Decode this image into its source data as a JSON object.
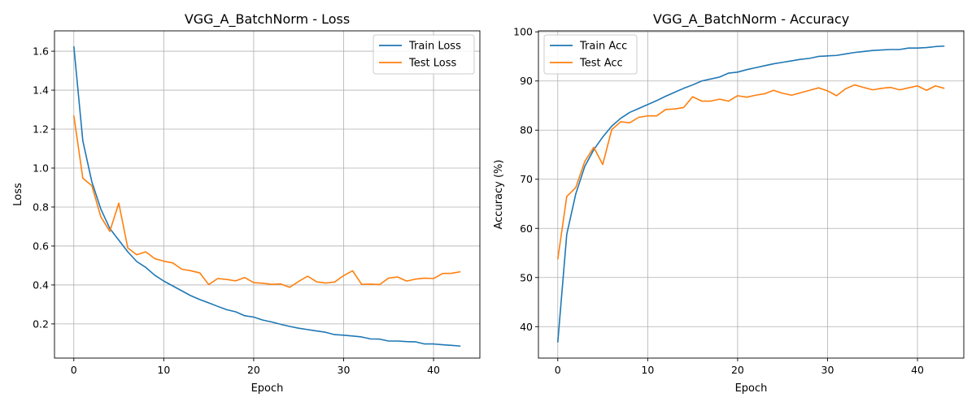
{
  "chart_data": [
    {
      "type": "line",
      "title": "VGG_A_BatchNorm - Loss",
      "xlabel": "Epoch",
      "ylabel": "Loss",
      "xlim": [
        -2.15,
        45.15
      ],
      "ylim": [
        0.0245,
        1.7045
      ],
      "xticks": [
        0,
        10,
        20,
        30,
        40
      ],
      "yticks": [
        0.2,
        0.4,
        0.6,
        0.8,
        1.0,
        1.2,
        1.4,
        1.6
      ],
      "ytick_labels": [
        "0.2",
        "0.4",
        "0.6",
        "0.8",
        "1.0",
        "1.2",
        "1.4",
        "1.6"
      ],
      "grid": true,
      "legend_position": "top-right",
      "x": [
        0,
        1,
        2,
        3,
        4,
        5,
        6,
        7,
        8,
        9,
        10,
        11,
        12,
        13,
        14,
        15,
        16,
        17,
        18,
        19,
        20,
        21,
        22,
        23,
        24,
        25,
        26,
        27,
        28,
        29,
        30,
        31,
        32,
        33,
        34,
        35,
        36,
        37,
        38,
        39,
        40,
        41,
        42,
        43
      ],
      "series": [
        {
          "name": "Train Loss",
          "color": "#1f77b4",
          "values": [
            1.625,
            1.14,
            0.93,
            0.79,
            0.69,
            0.63,
            0.57,
            0.52,
            0.49,
            0.45,
            0.42,
            0.395,
            0.37,
            0.345,
            0.325,
            0.308,
            0.29,
            0.273,
            0.262,
            0.242,
            0.235,
            0.22,
            0.21,
            0.198,
            0.187,
            0.178,
            0.171,
            0.164,
            0.157,
            0.145,
            0.142,
            0.138,
            0.133,
            0.123,
            0.122,
            0.112,
            0.112,
            0.109,
            0.108,
            0.097,
            0.097,
            0.093,
            0.09,
            0.086
          ]
        },
        {
          "name": "Test Loss",
          "color": "#ff7f0e",
          "values": [
            1.27,
            0.948,
            0.91,
            0.75,
            0.675,
            0.82,
            0.59,
            0.555,
            0.57,
            0.535,
            0.522,
            0.513,
            0.481,
            0.473,
            0.462,
            0.402,
            0.433,
            0.428,
            0.421,
            0.438,
            0.412,
            0.409,
            0.403,
            0.405,
            0.388,
            0.418,
            0.445,
            0.416,
            0.41,
            0.415,
            0.448,
            0.473,
            0.403,
            0.404,
            0.402,
            0.435,
            0.441,
            0.42,
            0.43,
            0.435,
            0.433,
            0.459,
            0.46,
            0.468
          ]
        }
      ]
    },
    {
      "type": "line",
      "title": "VGG_A_BatchNorm - Accuracy",
      "xlabel": "Epoch",
      "ylabel": "Accuracy (%)",
      "xlim": [
        -2.15,
        45.15
      ],
      "ylim": [
        33.6,
        100.2
      ],
      "xticks": [
        0,
        10,
        20,
        30,
        40
      ],
      "yticks": [
        40,
        50,
        60,
        70,
        80,
        90,
        100
      ],
      "ytick_labels": [
        "40",
        "50",
        "60",
        "70",
        "80",
        "90",
        "100"
      ],
      "grid": true,
      "legend_position": "top-left",
      "x": [
        0,
        1,
        2,
        3,
        4,
        5,
        6,
        7,
        8,
        9,
        10,
        11,
        12,
        13,
        14,
        15,
        16,
        17,
        18,
        19,
        20,
        21,
        22,
        23,
        24,
        25,
        26,
        27,
        28,
        29,
        30,
        31,
        32,
        33,
        34,
        35,
        36,
        37,
        38,
        39,
        40,
        41,
        42,
        43
      ],
      "series": [
        {
          "name": "Train Acc",
          "color": "#1f77b4",
          "values": [
            36.8,
            58.8,
            67.0,
            72.6,
            76.0,
            78.6,
            80.8,
            82.4,
            83.6,
            84.4,
            85.2,
            86.0,
            86.9,
            87.7,
            88.5,
            89.2,
            90.0,
            90.4,
            90.8,
            91.6,
            91.8,
            92.3,
            92.7,
            93.1,
            93.5,
            93.8,
            94.1,
            94.4,
            94.6,
            95.0,
            95.1,
            95.2,
            95.5,
            95.8,
            96.0,
            96.2,
            96.3,
            96.4,
            96.4,
            96.7,
            96.7,
            96.8,
            97.0,
            97.1
          ]
        },
        {
          "name": "Test Acc",
          "color": "#ff7f0e",
          "values": [
            53.7,
            66.5,
            68.3,
            73.6,
            76.5,
            73.0,
            80.1,
            81.7,
            81.5,
            82.6,
            82.9,
            82.9,
            84.2,
            84.3,
            84.6,
            86.8,
            85.9,
            85.9,
            86.3,
            85.9,
            87.0,
            86.7,
            87.1,
            87.4,
            88.1,
            87.5,
            87.1,
            87.6,
            88.1,
            88.6,
            88.0,
            87.0,
            88.4,
            89.2,
            88.7,
            88.2,
            88.5,
            88.7,
            88.2,
            88.6,
            89.0,
            88.1,
            89.0,
            88.5
          ]
        }
      ]
    }
  ]
}
